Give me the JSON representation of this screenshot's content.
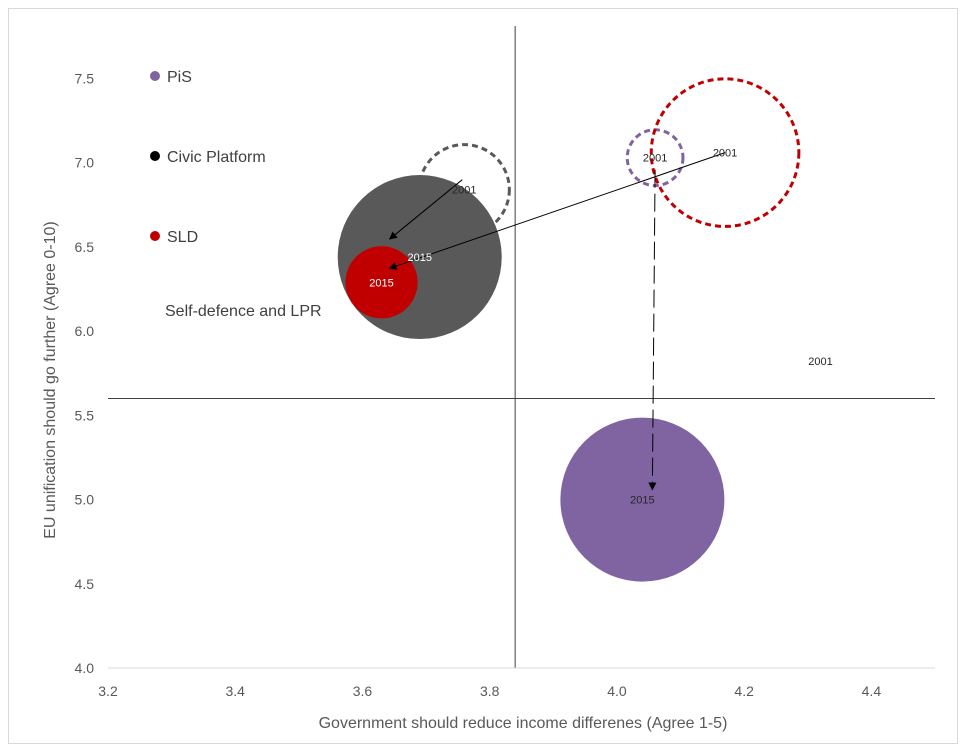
{
  "chart_data": {
    "type": "scatter",
    "subtype": "bubble",
    "xlabel": "Government should reduce income differenes (Agree 1-5)",
    "ylabel": "EU unification should go further (Agree 0-10)",
    "xlim": [
      3.2,
      4.5
    ],
    "ylim": [
      4.0,
      7.8
    ],
    "xticks": [
      "3.2",
      "3.4",
      "3.6",
      "3.8",
      "4.0",
      "4.2",
      "4.4"
    ],
    "yticks": [
      "4.0",
      "4.5",
      "5.0",
      "5.5",
      "6.0",
      "6.5",
      "7.0",
      "7.5"
    ],
    "grid": false,
    "reference_lines": {
      "x": 3.84,
      "y": 5.6
    },
    "colors": {
      "PiS": "#8064a2",
      "Civic Platform": "#595959",
      "SLD": "#c00000",
      "axis": "#404040"
    },
    "legend": [
      {
        "name": "PiS",
        "color": "#8064a2"
      },
      {
        "name": "Civic Platform",
        "color": "#000000"
      },
      {
        "name": "SLD",
        "color": "#c00000"
      }
    ],
    "annotations": [
      {
        "text": "Self-defence and LPR"
      },
      {
        "text": "2001",
        "x": 4.32,
        "y": 5.8
      }
    ],
    "series": [
      {
        "name": "Civic Platform",
        "points": [
          {
            "label": "2001",
            "x": 3.76,
            "y": 6.84,
            "size": 0.55,
            "style": "dashed"
          },
          {
            "label": "2015",
            "x": 3.69,
            "y": 6.44,
            "size": 1.0,
            "style": "filled"
          }
        ]
      },
      {
        "name": "SLD",
        "points": [
          {
            "label": "2001",
            "x": 4.17,
            "y": 7.06,
            "size": 0.9,
            "style": "dashed"
          },
          {
            "label": "2015",
            "x": 3.63,
            "y": 6.29,
            "size": 0.44,
            "style": "filled"
          }
        ]
      },
      {
        "name": "PiS",
        "points": [
          {
            "label": "2001",
            "x": 4.06,
            "y": 7.03,
            "size": 0.34,
            "style": "dashed"
          },
          {
            "label": "2015",
            "x": 4.04,
            "y": 5.0,
            "size": 1.0,
            "style": "filled"
          }
        ]
      }
    ]
  }
}
